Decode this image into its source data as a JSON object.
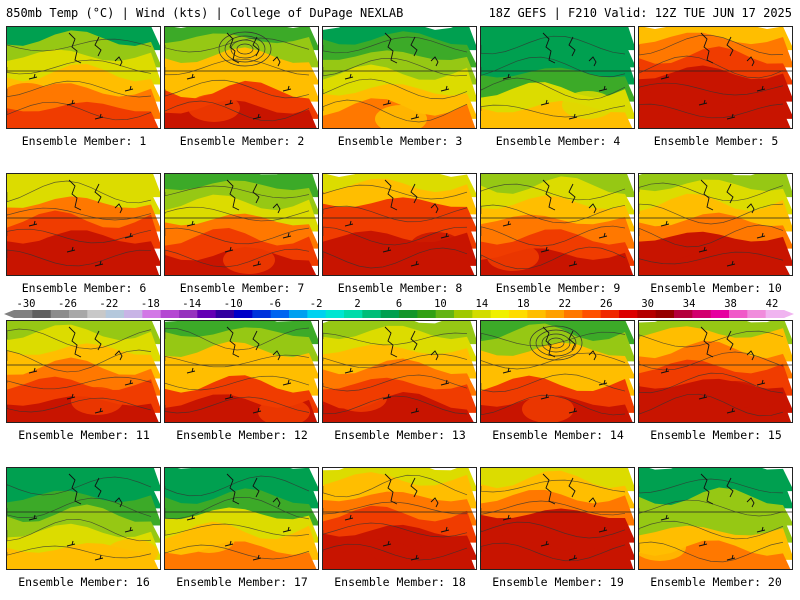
{
  "header": {
    "left": "850mb Temp (°C) | Wind (kts) | College of DuPage NEXLAB",
    "right": "18Z GEFS | F210 Valid: 12Z TUE JUN 17 2025"
  },
  "label_prefix": "Ensemble Member: ",
  "members": [
    {
      "number": 1,
      "label": "Ensemble Member: 1",
      "warmth": 0.45
    },
    {
      "number": 2,
      "label": "Ensemble Member: 2",
      "warmth": 0.55
    },
    {
      "number": 3,
      "label": "Ensemble Member: 3",
      "warmth": 0.35
    },
    {
      "number": 4,
      "label": "Ensemble Member: 4",
      "warmth": 0.15
    },
    {
      "number": 5,
      "label": "Ensemble Member: 5",
      "warmth": 0.85
    },
    {
      "number": 6,
      "label": "Ensemble Member: 6",
      "warmth": 0.7
    },
    {
      "number": 7,
      "label": "Ensemble Member: 7",
      "warmth": 0.55
    },
    {
      "number": 8,
      "label": "Ensemble Member: 8",
      "warmth": 0.8
    },
    {
      "number": 9,
      "label": "Ensemble Member: 9",
      "warmth": 0.6
    },
    {
      "number": 10,
      "label": "Ensemble Member: 10",
      "warmth": 0.65
    },
    {
      "number": 11,
      "label": "Ensemble Member: 11",
      "warmth": 0.6
    },
    {
      "number": 12,
      "label": "Ensemble Member: 12",
      "warmth": 0.55
    },
    {
      "number": 13,
      "label": "Ensemble Member: 13",
      "warmth": 0.6
    },
    {
      "number": 14,
      "label": "Ensemble Member: 14",
      "warmth": 0.55
    },
    {
      "number": 15,
      "label": "Ensemble Member: 15",
      "warmth": 0.7
    },
    {
      "number": 16,
      "label": "Ensemble Member: 16",
      "warmth": 0.25
    },
    {
      "number": 17,
      "label": "Ensemble Member: 17",
      "warmth": 0.3
    },
    {
      "number": 18,
      "label": "Ensemble Member: 18",
      "warmth": 0.75
    },
    {
      "number": 19,
      "label": "Ensemble Member: 19",
      "warmth": 0.8
    },
    {
      "number": 20,
      "label": "Ensemble Member: 20",
      "warmth": 0.3
    }
  ],
  "colorbar": {
    "labels": [
      "-30",
      "-26",
      "-22",
      "-18",
      "-14",
      "-10",
      "-6",
      "-2",
      "2",
      "6",
      "10",
      "14",
      "18",
      "22",
      "26",
      "30",
      "34",
      "38",
      "42"
    ],
    "colors": [
      "#808080",
      "#606060",
      "#8c8c8c",
      "#a8a8a8",
      "#c8c8c8",
      "#b4c8dc",
      "#c8b4e6",
      "#d278e6",
      "#b446d2",
      "#9632be",
      "#6400b4",
      "#3200a0",
      "#0000c8",
      "#0032dc",
      "#0064f0",
      "#00a0f0",
      "#00d2f0",
      "#00e6d2",
      "#00dcaa",
      "#00be78",
      "#00a050",
      "#14962a",
      "#32a014",
      "#64b414",
      "#a0c800",
      "#d2dc00",
      "#f0f000",
      "#ffdc00",
      "#ffbe00",
      "#ffa000",
      "#ff7800",
      "#ff5000",
      "#f02800",
      "#dc0000",
      "#b40000",
      "#960000",
      "#b4003c",
      "#d2006e",
      "#e600a0",
      "#f05ac8",
      "#f08cdc",
      "#f0b4f0"
    ]
  },
  "field_colors": {
    "cold": "#00a050",
    "cool": "#3caa28",
    "mild": "#96c814",
    "neutral": "#dcdc00",
    "warm": "#ffbe00",
    "hot": "#ff7800",
    "hotter": "#f03c00",
    "hottest": "#c81400"
  }
}
